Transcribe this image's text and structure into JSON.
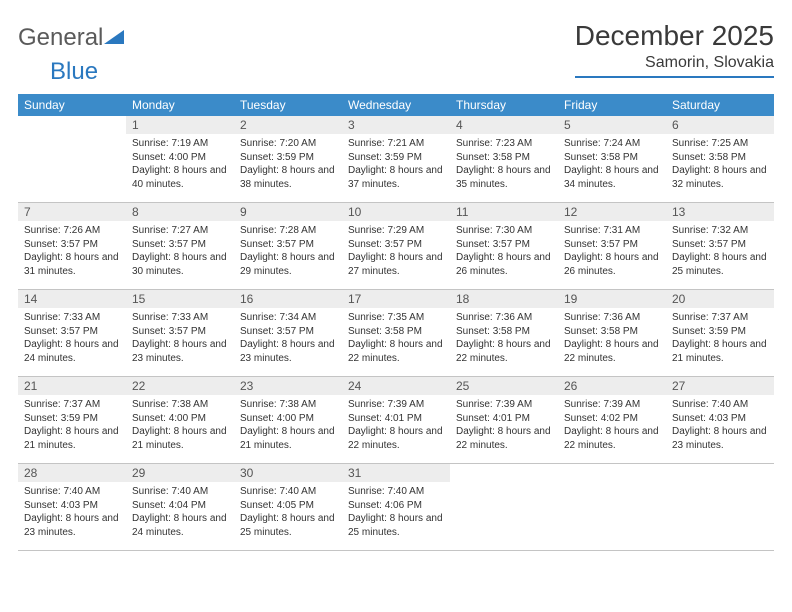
{
  "brand": {
    "text1": "General",
    "text2": "Blue"
  },
  "title": "December 2025",
  "location": "Samorin, Slovakia",
  "weekdays": [
    "Sunday",
    "Monday",
    "Tuesday",
    "Wednesday",
    "Thursday",
    "Friday",
    "Saturday"
  ],
  "colors": {
    "header_bg": "#3b8bc9",
    "header_fg": "#ffffff",
    "daynum_bg": "#ededed",
    "border": "#c4c4c4",
    "brand_gray": "#5a5a5a",
    "brand_blue": "#2a78bf"
  },
  "first_weekday": 1,
  "days": [
    {
      "n": 1,
      "sr": "7:19 AM",
      "ss": "4:00 PM",
      "dl": "8 hours and 40 minutes."
    },
    {
      "n": 2,
      "sr": "7:20 AM",
      "ss": "3:59 PM",
      "dl": "8 hours and 38 minutes."
    },
    {
      "n": 3,
      "sr": "7:21 AM",
      "ss": "3:59 PM",
      "dl": "8 hours and 37 minutes."
    },
    {
      "n": 4,
      "sr": "7:23 AM",
      "ss": "3:58 PM",
      "dl": "8 hours and 35 minutes."
    },
    {
      "n": 5,
      "sr": "7:24 AM",
      "ss": "3:58 PM",
      "dl": "8 hours and 34 minutes."
    },
    {
      "n": 6,
      "sr": "7:25 AM",
      "ss": "3:58 PM",
      "dl": "8 hours and 32 minutes."
    },
    {
      "n": 7,
      "sr": "7:26 AM",
      "ss": "3:57 PM",
      "dl": "8 hours and 31 minutes."
    },
    {
      "n": 8,
      "sr": "7:27 AM",
      "ss": "3:57 PM",
      "dl": "8 hours and 30 minutes."
    },
    {
      "n": 9,
      "sr": "7:28 AM",
      "ss": "3:57 PM",
      "dl": "8 hours and 29 minutes."
    },
    {
      "n": 10,
      "sr": "7:29 AM",
      "ss": "3:57 PM",
      "dl": "8 hours and 27 minutes."
    },
    {
      "n": 11,
      "sr": "7:30 AM",
      "ss": "3:57 PM",
      "dl": "8 hours and 26 minutes."
    },
    {
      "n": 12,
      "sr": "7:31 AM",
      "ss": "3:57 PM",
      "dl": "8 hours and 26 minutes."
    },
    {
      "n": 13,
      "sr": "7:32 AM",
      "ss": "3:57 PM",
      "dl": "8 hours and 25 minutes."
    },
    {
      "n": 14,
      "sr": "7:33 AM",
      "ss": "3:57 PM",
      "dl": "8 hours and 24 minutes."
    },
    {
      "n": 15,
      "sr": "7:33 AM",
      "ss": "3:57 PM",
      "dl": "8 hours and 23 minutes."
    },
    {
      "n": 16,
      "sr": "7:34 AM",
      "ss": "3:57 PM",
      "dl": "8 hours and 23 minutes."
    },
    {
      "n": 17,
      "sr": "7:35 AM",
      "ss": "3:58 PM",
      "dl": "8 hours and 22 minutes."
    },
    {
      "n": 18,
      "sr": "7:36 AM",
      "ss": "3:58 PM",
      "dl": "8 hours and 22 minutes."
    },
    {
      "n": 19,
      "sr": "7:36 AM",
      "ss": "3:58 PM",
      "dl": "8 hours and 22 minutes."
    },
    {
      "n": 20,
      "sr": "7:37 AM",
      "ss": "3:59 PM",
      "dl": "8 hours and 21 minutes."
    },
    {
      "n": 21,
      "sr": "7:37 AM",
      "ss": "3:59 PM",
      "dl": "8 hours and 21 minutes."
    },
    {
      "n": 22,
      "sr": "7:38 AM",
      "ss": "4:00 PM",
      "dl": "8 hours and 21 minutes."
    },
    {
      "n": 23,
      "sr": "7:38 AM",
      "ss": "4:00 PM",
      "dl": "8 hours and 21 minutes."
    },
    {
      "n": 24,
      "sr": "7:39 AM",
      "ss": "4:01 PM",
      "dl": "8 hours and 22 minutes."
    },
    {
      "n": 25,
      "sr": "7:39 AM",
      "ss": "4:01 PM",
      "dl": "8 hours and 22 minutes."
    },
    {
      "n": 26,
      "sr": "7:39 AM",
      "ss": "4:02 PM",
      "dl": "8 hours and 22 minutes."
    },
    {
      "n": 27,
      "sr": "7:40 AM",
      "ss": "4:03 PM",
      "dl": "8 hours and 23 minutes."
    },
    {
      "n": 28,
      "sr": "7:40 AM",
      "ss": "4:03 PM",
      "dl": "8 hours and 23 minutes."
    },
    {
      "n": 29,
      "sr": "7:40 AM",
      "ss": "4:04 PM",
      "dl": "8 hours and 24 minutes."
    },
    {
      "n": 30,
      "sr": "7:40 AM",
      "ss": "4:05 PM",
      "dl": "8 hours and 25 minutes."
    },
    {
      "n": 31,
      "sr": "7:40 AM",
      "ss": "4:06 PM",
      "dl": "8 hours and 25 minutes."
    }
  ],
  "labels": {
    "sunrise": "Sunrise:",
    "sunset": "Sunset:",
    "daylight": "Daylight:"
  }
}
